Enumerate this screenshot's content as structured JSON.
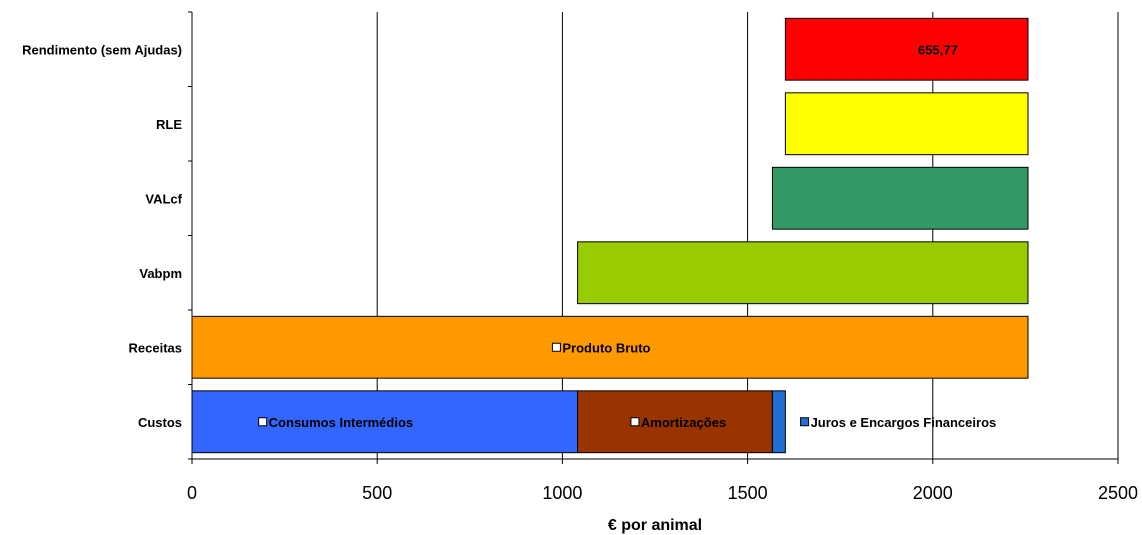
{
  "chart_data": {
    "type": "bar",
    "orientation": "horizontal",
    "stacked": true,
    "xlabel": "€ por animal",
    "xlim": [
      0,
      2500
    ],
    "xticks": [
      0,
      500,
      1000,
      1500,
      2000,
      2500
    ],
    "xtick_labels": [
      "0",
      "500",
      "1000",
      "1500",
      "2000",
      "2500"
    ],
    "grid": "vertical",
    "categories": [
      "Rendimento (sem Ajudas)",
      "RLE",
      "VALcf",
      "Vabpm",
      "Receitas",
      "Custos"
    ],
    "bars": [
      {
        "category": "Rendimento (sem Ajudas)",
        "segments": [
          {
            "name": "",
            "start": 1602,
            "end": 2257,
            "color": "#FF0000",
            "label": "655,77",
            "label_at": 1960
          }
        ]
      },
      {
        "category": "RLE",
        "segments": [
          {
            "name": "",
            "start": 1602,
            "end": 2257,
            "color": "#FFFF00",
            "label": ""
          }
        ]
      },
      {
        "category": "VALcf",
        "segments": [
          {
            "name": "",
            "start": 1567,
            "end": 2257,
            "color": "#339966",
            "label": ""
          }
        ]
      },
      {
        "category": "Vabpm",
        "segments": [
          {
            "name": "",
            "start": 1041,
            "end": 2257,
            "color": "#99CC00",
            "label": ""
          }
        ]
      },
      {
        "category": "Receitas",
        "segments": [
          {
            "name": "Produto Bruto",
            "start": 0,
            "end": 2257,
            "color": "#FF9900",
            "label": "Produto Bruto",
            "label_at": 1000,
            "marker": true
          }
        ]
      },
      {
        "category": "Custos",
        "segments": [
          {
            "name": "Consumos Intermédios",
            "start": 0,
            "end": 1041,
            "color": "#3366FF",
            "label": "Consumos Intermédios",
            "label_at": 207,
            "marker": true
          },
          {
            "name": "Amortizações",
            "start": 1041,
            "end": 1567,
            "color": "#993300",
            "label": "Amortizações",
            "label_at": 1212,
            "marker": true
          },
          {
            "name": "Juros e Encargos Financeiros",
            "start": 1567,
            "end": 1602,
            "color": "#1F6FD6",
            "label": "Juros e Encargos Financeiros",
            "label_at": 1670,
            "marker": true,
            "marker_color": "#1F6FD6"
          }
        ]
      }
    ]
  }
}
